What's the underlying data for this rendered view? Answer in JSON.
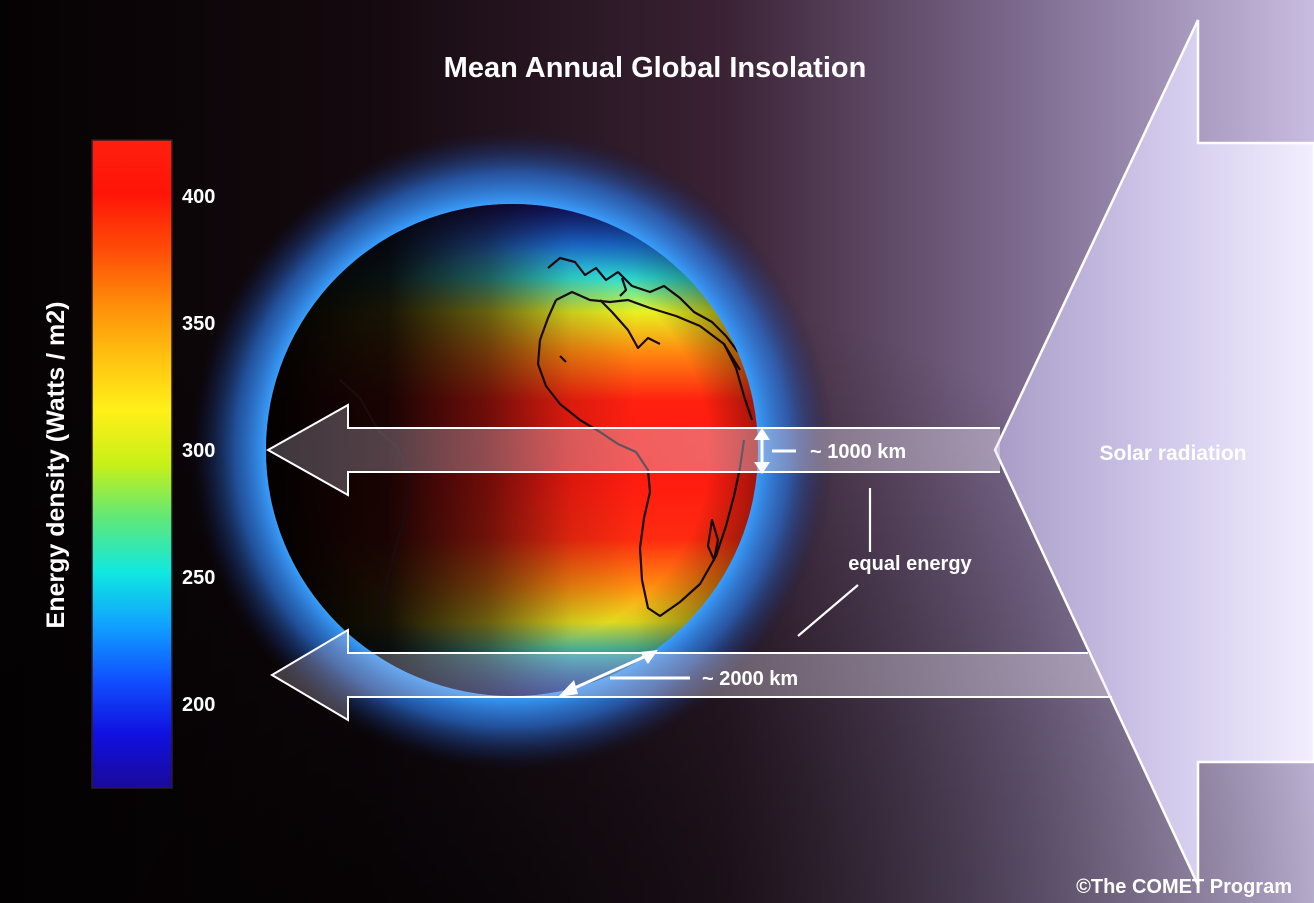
{
  "title": "Mean Annual Global Insolation",
  "colorbar": {
    "label": "Energy density (Watts / m2)",
    "ticks": [
      "400",
      "350",
      "300",
      "250",
      "200"
    ],
    "stops": [
      "#ff2010",
      "#ff1408",
      "#ff4a08",
      "#ff8a08",
      "#ffc010",
      "#fff018",
      "#c8f018",
      "#60e878",
      "#10e8e0",
      "#10a0ff",
      "#1050ff",
      "#1010e0",
      "#1a0a9a"
    ]
  },
  "labels": {
    "solar_radiation": "Solar radiation",
    "width_small": "~ 1000 km",
    "width_large": "~ 2000 km",
    "equal_energy": "equal energy",
    "copyright": "©The COMET Program"
  },
  "colors": {
    "background": "#0a0608",
    "sky_light": "#eee6fb",
    "glow": "#3aa0ff"
  }
}
